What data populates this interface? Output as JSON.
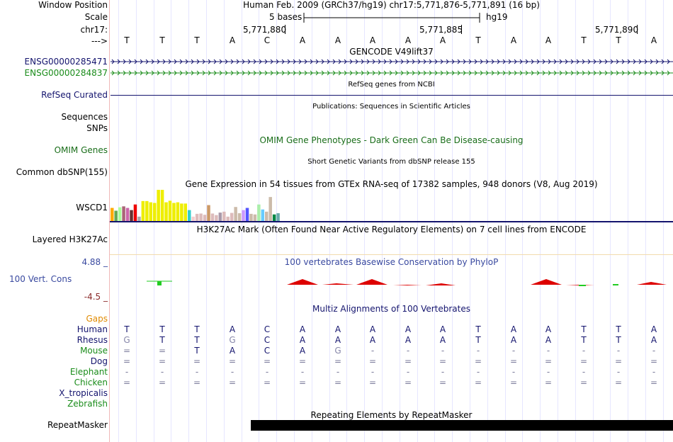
{
  "position": {
    "label": "Window Position",
    "text": "Human Feb. 2009 (GRCh37/hg19)   chr17:5,771,876-5,771,891 (16 bp)"
  },
  "scale": {
    "label": "Scale",
    "left_text": "5 bases",
    "right_text": "hg19"
  },
  "ruler": {
    "label": "chr17:",
    "ticks": [
      "5,771,880",
      "5,771,885",
      "5,771,890"
    ],
    "arrow_label": "--->"
  },
  "sequence": [
    "T",
    "T",
    "T",
    "A",
    "C",
    "A",
    "A",
    "A",
    "A",
    "A",
    "T",
    "A",
    "A",
    "T",
    "T",
    "A"
  ],
  "gencode": {
    "title": "GENCODE V49lift37",
    "genes": [
      {
        "name": "ENSG00000285471",
        "color": "#14146e"
      },
      {
        "name": "ENSG00000284837",
        "color": "#1a8c1a"
      }
    ]
  },
  "refseq": {
    "title": "RefSeq genes from NCBI",
    "label": "RefSeq Curated"
  },
  "publications": {
    "title": "Publications: Sequences in Scientific Articles",
    "label1": "Sequences",
    "label2": "SNPs"
  },
  "omim": {
    "title": "OMIM Gene Phenotypes - Dark Green Can Be Disease-causing",
    "label": "OMIM Genes"
  },
  "dbsnp": {
    "title": "Short Genetic Variants from dbSNP release 155",
    "label": "Common dbSNP(155)"
  },
  "gtex": {
    "title": "Gene Expression in 54 tissues from GTEx RNA-seq of 17382 samples, 948 donors (V8, Aug 2019)",
    "label": "WSCD1",
    "bars": [
      {
        "v": 0.42,
        "c": "#ffaa00"
      },
      {
        "v": 0.33,
        "c": "#66aa55"
      },
      {
        "v": 0.44,
        "c": "#aaff99"
      },
      {
        "v": 0.47,
        "c": "#aa6677"
      },
      {
        "v": 0.42,
        "c": "#cc66aa"
      },
      {
        "v": 0.35,
        "c": "#663333"
      },
      {
        "v": 0.53,
        "c": "#ee0000"
      },
      {
        "v": 0.14,
        "c": "#aaaaaa"
      },
      {
        "v": 0.64,
        "c": "#eeee00"
      },
      {
        "v": 0.64,
        "c": "#eeee00"
      },
      {
        "v": 0.6,
        "c": "#eeee00"
      },
      {
        "v": 0.58,
        "c": "#eeee00"
      },
      {
        "v": 1.0,
        "c": "#eeee00"
      },
      {
        "v": 1.0,
        "c": "#eeee00"
      },
      {
        "v": 0.6,
        "c": "#eeee00"
      },
      {
        "v": 0.65,
        "c": "#eeee00"
      },
      {
        "v": 0.58,
        "c": "#eeee00"
      },
      {
        "v": 0.6,
        "c": "#eeee00"
      },
      {
        "v": 0.56,
        "c": "#eeee00"
      },
      {
        "v": 0.56,
        "c": "#eeee00"
      },
      {
        "v": 0.35,
        "c": "#33cccc"
      },
      {
        "v": 0.14,
        "c": "#f4cccc"
      },
      {
        "v": 0.23,
        "c": "#ddbbbb"
      },
      {
        "v": 0.24,
        "c": "#ddbbbb"
      },
      {
        "v": 0.2,
        "c": "#ddbbbb"
      },
      {
        "v": 0.51,
        "c": "#cc9966"
      },
      {
        "v": 0.24,
        "c": "#ddbbbb"
      },
      {
        "v": 0.19,
        "c": "#ddbbbb"
      },
      {
        "v": 0.27,
        "c": "#aa99aa"
      },
      {
        "v": 0.3,
        "c": "#ddbbbb"
      },
      {
        "v": 0.14,
        "c": "#ddbbbb"
      },
      {
        "v": 0.26,
        "c": "#ddbbbb"
      },
      {
        "v": 0.45,
        "c": "#ccbbaa"
      },
      {
        "v": 0.25,
        "c": "#ccbbaa"
      },
      {
        "v": 0.35,
        "c": "#cc99ff"
      },
      {
        "v": 0.42,
        "c": "#5555ff"
      },
      {
        "v": 0.23,
        "c": "#ccbbaa"
      },
      {
        "v": 0.21,
        "c": "#ccbbaa"
      },
      {
        "v": 0.53,
        "c": "#aaeeaa"
      },
      {
        "v": 0.37,
        "c": "#66ccff"
      },
      {
        "v": 0.3,
        "c": "#ccbbaa"
      },
      {
        "v": 0.77,
        "c": "#ccbbaa"
      },
      {
        "v": 0.21,
        "c": "#008844"
      },
      {
        "v": 0.25,
        "c": "#66aaaa"
      }
    ]
  },
  "h3k27ac": {
    "title": "H3K27Ac Mark (Often Found Near Active Regulatory Elements) on 7 cell lines from ENCODE",
    "label": "Layered H3K27Ac"
  },
  "phylop": {
    "title": "100 vertebrates Basewise Conservation by PhyloP",
    "label": "100 Vert. Cons",
    "max": "4.88 _",
    "min": "-4.5 _"
  },
  "multiz": {
    "title": "Multiz Alignments of 100 Vertebrates",
    "gaps_label": "Gaps",
    "species": [
      {
        "name": "Human",
        "color": "#14146e",
        "bases": [
          "T",
          "T",
          "T",
          "A",
          "C",
          "A",
          "A",
          "A",
          "A",
          "A",
          "T",
          "A",
          "A",
          "T",
          "T",
          "A"
        ]
      },
      {
        "name": "Rhesus",
        "color": "#14146e",
        "bases": [
          "G",
          "T",
          "T",
          "G",
          "C",
          "A",
          "A",
          "A",
          "A",
          "A",
          "T",
          "A",
          "A",
          "T",
          "T",
          "A"
        ]
      },
      {
        "name": "Mouse",
        "color": "#1a8c1a",
        "bases": [
          "=",
          "=",
          "T",
          "A",
          "C",
          "A",
          "G",
          "-",
          "-",
          "-",
          "-",
          "-",
          "-",
          "-",
          "-",
          "-"
        ]
      },
      {
        "name": "Dog",
        "color": "#14146e",
        "bases": [
          "=",
          "=",
          "=",
          "=",
          "=",
          "=",
          "=",
          "=",
          "=",
          "=",
          "=",
          "=",
          "=",
          "=",
          "=",
          "="
        ]
      },
      {
        "name": "Elephant",
        "color": "#1a8c1a",
        "bases": [
          "-",
          "-",
          "-",
          "-",
          "-",
          "-",
          "-",
          "-",
          "-",
          "-",
          "-",
          "-",
          "-",
          "-",
          "-",
          "-"
        ]
      },
      {
        "name": "Chicken",
        "color": "#1a8c1a",
        "bases": [
          "=",
          "=",
          "=",
          "=",
          "=",
          "=",
          "=",
          "=",
          "=",
          "=",
          "=",
          "=",
          "=",
          "=",
          "=",
          "="
        ]
      },
      {
        "name": "X_tropicalis",
        "color": "#14146e",
        "bases": []
      },
      {
        "name": "Zebrafish",
        "color": "#1a8c1a",
        "bases": []
      }
    ]
  },
  "repeatmasker": {
    "title": "Repeating Elements by RepeatMasker",
    "label": "RepeatMasker"
  },
  "colors": {
    "navy": "#14146e",
    "green": "#1a8c1a",
    "gaps": "#e08a00",
    "phylop_red": "#dd0000",
    "phylop_green": "#22cc22"
  }
}
